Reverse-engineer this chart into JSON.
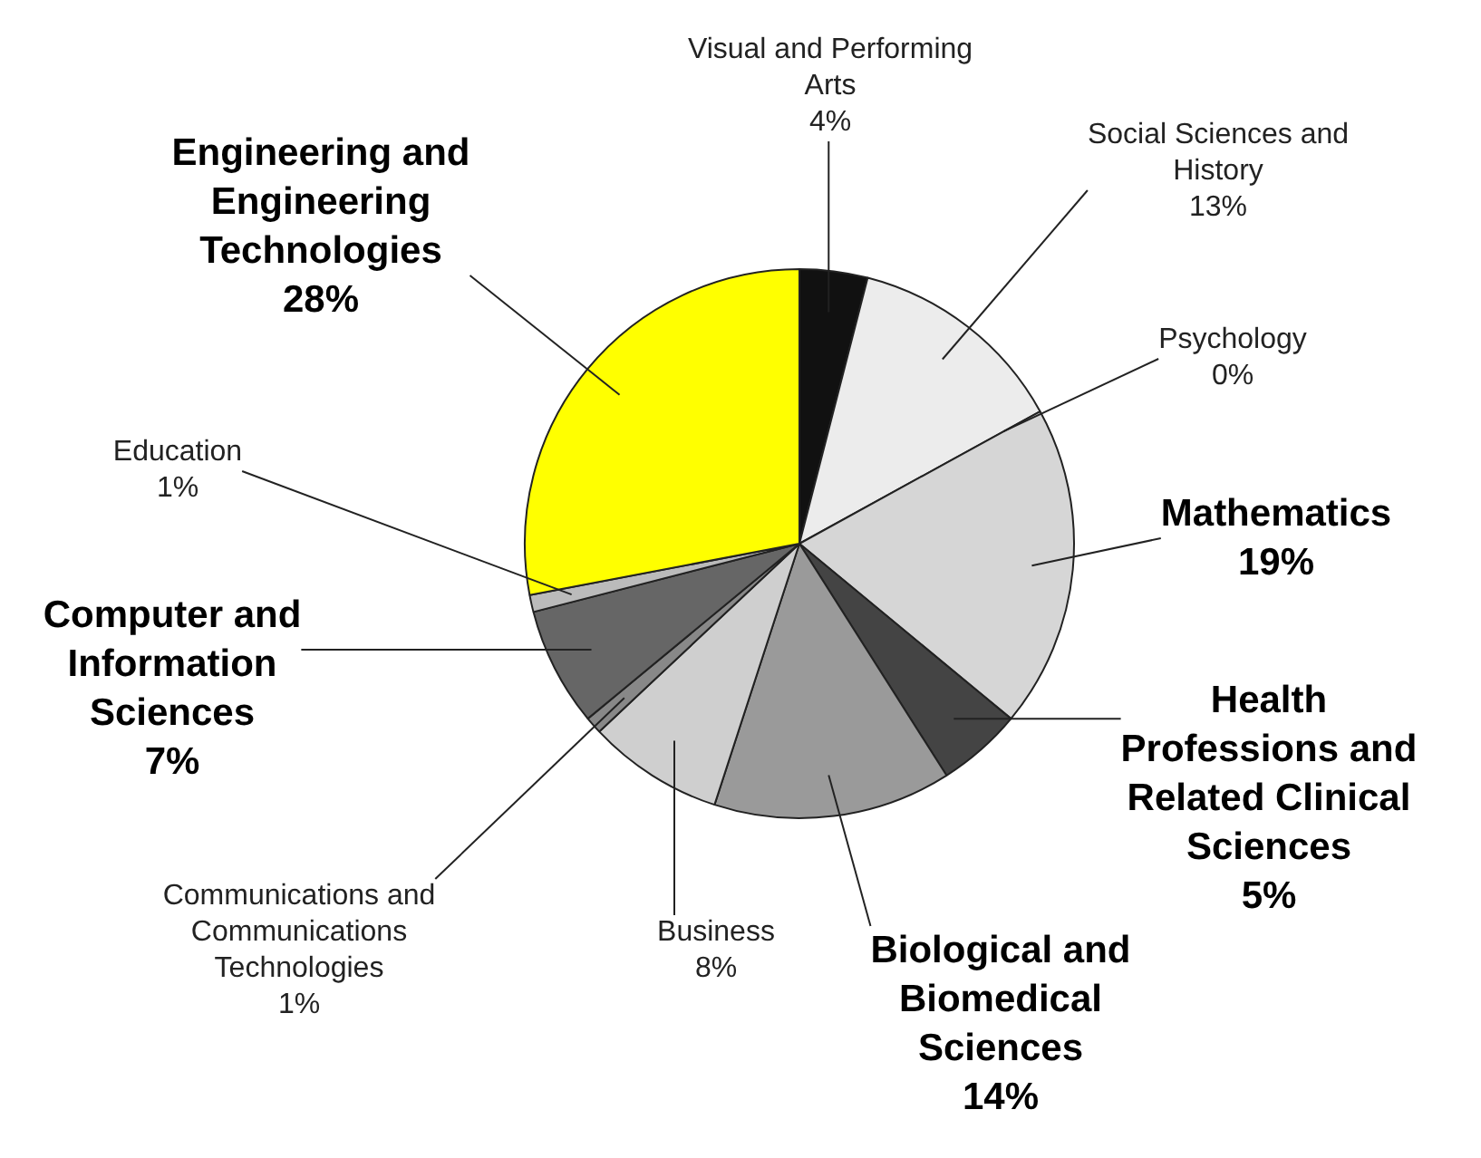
{
  "chart_data": {
    "type": "pie",
    "categories": [
      "Visual and Performing Arts",
      "Social Sciences and History",
      "Psychology",
      "Mathematics",
      "Health Professions and Related Clinical Sciences",
      "Biological and Biomedical Sciences",
      "Business",
      "Communications and Communications Technologies",
      "Computer and Information Sciences",
      "Education",
      "Engineering and Engineering Technologies"
    ],
    "values": [
      4,
      13,
      0,
      19,
      5,
      14,
      8,
      1,
      7,
      1,
      28
    ],
    "value_labels": [
      "4%",
      "13%",
      "0%",
      "19%",
      "5%",
      "14%",
      "8%",
      "1%",
      "7%",
      "1%",
      "28%"
    ],
    "colors": [
      "#111111",
      "#ececec",
      "#dddddd",
      "#d6d6d6",
      "#444444",
      "#9a9a9a",
      "#cfcfcf",
      "#888888",
      "#666666",
      "#bbbbbb",
      "#ffff00"
    ],
    "legend": false
  }
}
